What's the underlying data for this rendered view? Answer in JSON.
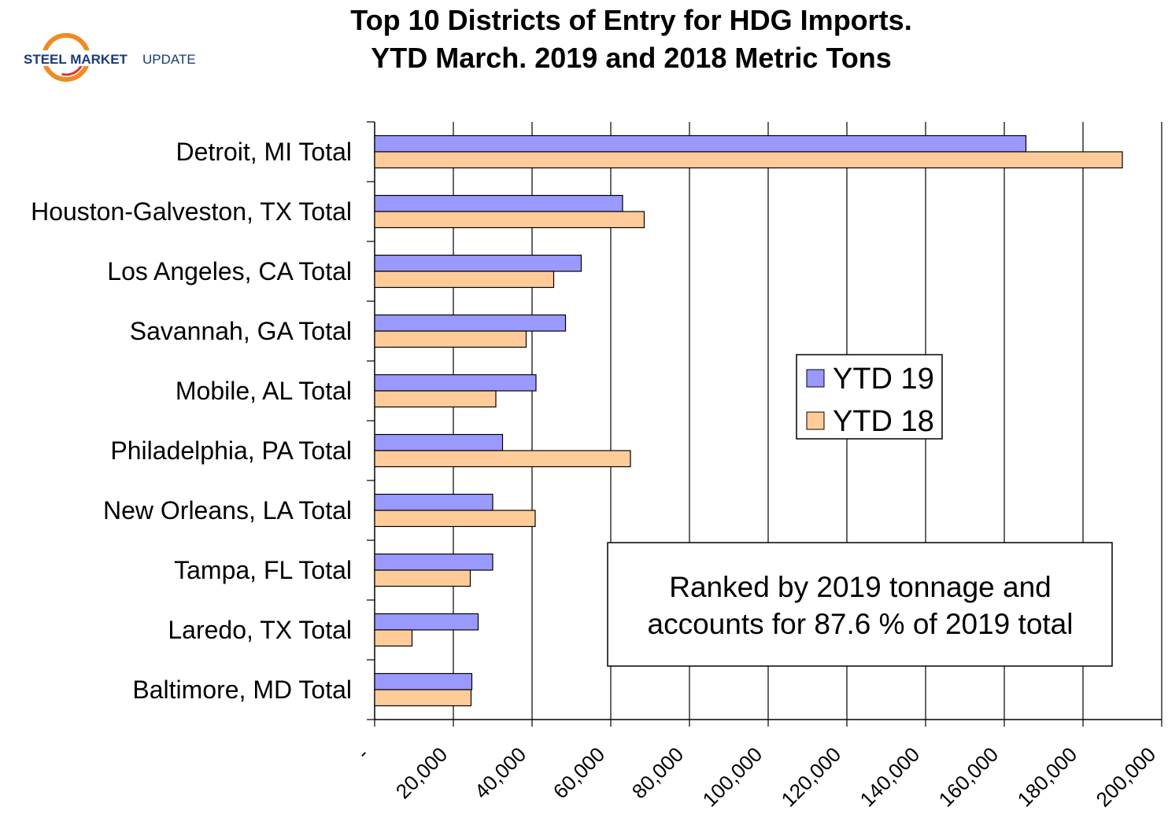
{
  "logo": {
    "brand_bold": "STEEL MARKET",
    "brand_light": "UPDATE"
  },
  "chart_data": {
    "type": "bar",
    "orientation": "horizontal",
    "title_lines": [
      "Top 10 Districts of Entry for HDG Imports.",
      "YTD March. 2019 and 2018 Metric Tons"
    ],
    "categories": [
      "Detroit, MI Total",
      "Houston-Galveston, TX Total",
      "Los Angeles, CA Total",
      "Savannah, GA Total",
      "Mobile, AL Total",
      "Philadelphia, PA Total",
      "New Orleans, LA Total",
      "Tampa, FL Total",
      "Laredo, TX Total",
      "Baltimore, MD Total"
    ],
    "series": [
      {
        "name": "YTD 19",
        "color": "#9999ff",
        "values": [
          165500,
          63000,
          52500,
          48500,
          41000,
          32500,
          30000,
          30000,
          26300,
          24700
        ]
      },
      {
        "name": "YTD 18",
        "color": "#ffcc99",
        "values": [
          190000,
          68500,
          45500,
          38500,
          30800,
          65000,
          40800,
          24300,
          9500,
          24500
        ]
      }
    ],
    "xlim": [
      0,
      200000
    ],
    "x_ticks": [
      0,
      20000,
      40000,
      60000,
      80000,
      100000,
      120000,
      140000,
      160000,
      180000,
      200000
    ],
    "x_tick_labels": [
      "-",
      "20,000",
      "40,000",
      "60,000",
      "80,000",
      "100,000",
      "120,000",
      "140,000",
      "160,000",
      "180,000",
      "200,000"
    ],
    "grid": "vertical",
    "legend_position": "center-right",
    "annotation_lines": [
      "Ranked by 2019 tonnage and",
      "accounts for 87.6 % of 2019 total"
    ],
    "xlabel": "",
    "ylabel": ""
  }
}
